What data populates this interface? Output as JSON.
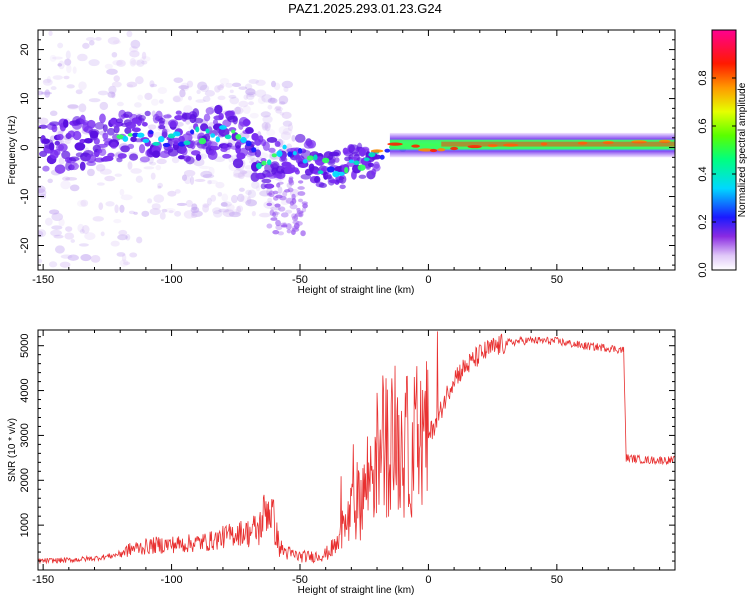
{
  "title": "PAZ1.2025.293.01.23.G24",
  "chart_data": [
    {
      "type": "heatmap",
      "xlabel": "Height of straight line (km)",
      "ylabel": "Frequency (Hz)",
      "xlim": [
        -152,
        96
      ],
      "ylim": [
        -25,
        24
      ],
      "xticks": [
        -150,
        -100,
        -50,
        0,
        50
      ],
      "yticks": [
        -20,
        -10,
        0,
        10,
        20
      ],
      "colorbar": {
        "label": "Normalized spectral amplitude",
        "range": [
          0,
          1
        ],
        "ticks": [
          "0.0",
          "0.2",
          "0.4",
          "0.6",
          "0.8"
        ],
        "tick_values": [
          0,
          0.2,
          0.4,
          0.6,
          0.8
        ]
      },
      "ridge": [
        {
          "x": -150,
          "f": 0
        },
        {
          "x": -120,
          "f": 2
        },
        {
          "x": -100,
          "f": 2
        },
        {
          "x": -80,
          "f": 3
        },
        {
          "x": -72,
          "f": 1
        },
        {
          "x": -63,
          "f": -4
        },
        {
          "x": -55,
          "f": -1
        },
        {
          "x": -45,
          "f": -3
        },
        {
          "x": -35,
          "f": -5
        },
        {
          "x": -20,
          "f": -1
        },
        {
          "x": -10,
          "f": 1
        },
        {
          "x": 0,
          "f": -1
        },
        {
          "x": 20,
          "f": 0
        },
        {
          "x": 50,
          "f": 0.5
        },
        {
          "x": 95,
          "f": 1
        }
      ]
    },
    {
      "type": "line",
      "xlabel": "Height of straight line (km)",
      "ylabel": "SNR (10 * v/v)",
      "xlim": [
        -152,
        96
      ],
      "ylim": [
        0,
        5350
      ],
      "xticks": [
        -150,
        -100,
        -50,
        0,
        50
      ],
      "yticks": [
        1000,
        2000,
        3000,
        4000,
        5000
      ],
      "color": "#e83030",
      "series": [
        {
          "name": "SNR",
          "x": [
            -152,
            -140,
            -130,
            -122,
            -115,
            -105,
            -95,
            -85,
            -75,
            -70,
            -66,
            -63,
            -61,
            -58,
            -55,
            -50,
            -45,
            -40,
            -35,
            -31,
            -28,
            -25,
            -22,
            -18,
            -14,
            -10,
            -5,
            0,
            5,
            10,
            15,
            20,
            25,
            30,
            35,
            40,
            50,
            60,
            70,
            76,
            77,
            85,
            96
          ],
          "y": [
            200,
            220,
            260,
            330,
            480,
            560,
            580,
            640,
            820,
            850,
            900,
            1400,
            1300,
            500,
            380,
            300,
            300,
            350,
            600,
            1100,
            1500,
            1800,
            2300,
            2800,
            3000,
            2700,
            2800,
            2950,
            3600,
            4300,
            4550,
            4800,
            4950,
            5050,
            5100,
            5120,
            5100,
            5000,
            4950,
            4900,
            2500,
            2450,
            2450
          ]
        }
      ]
    }
  ]
}
